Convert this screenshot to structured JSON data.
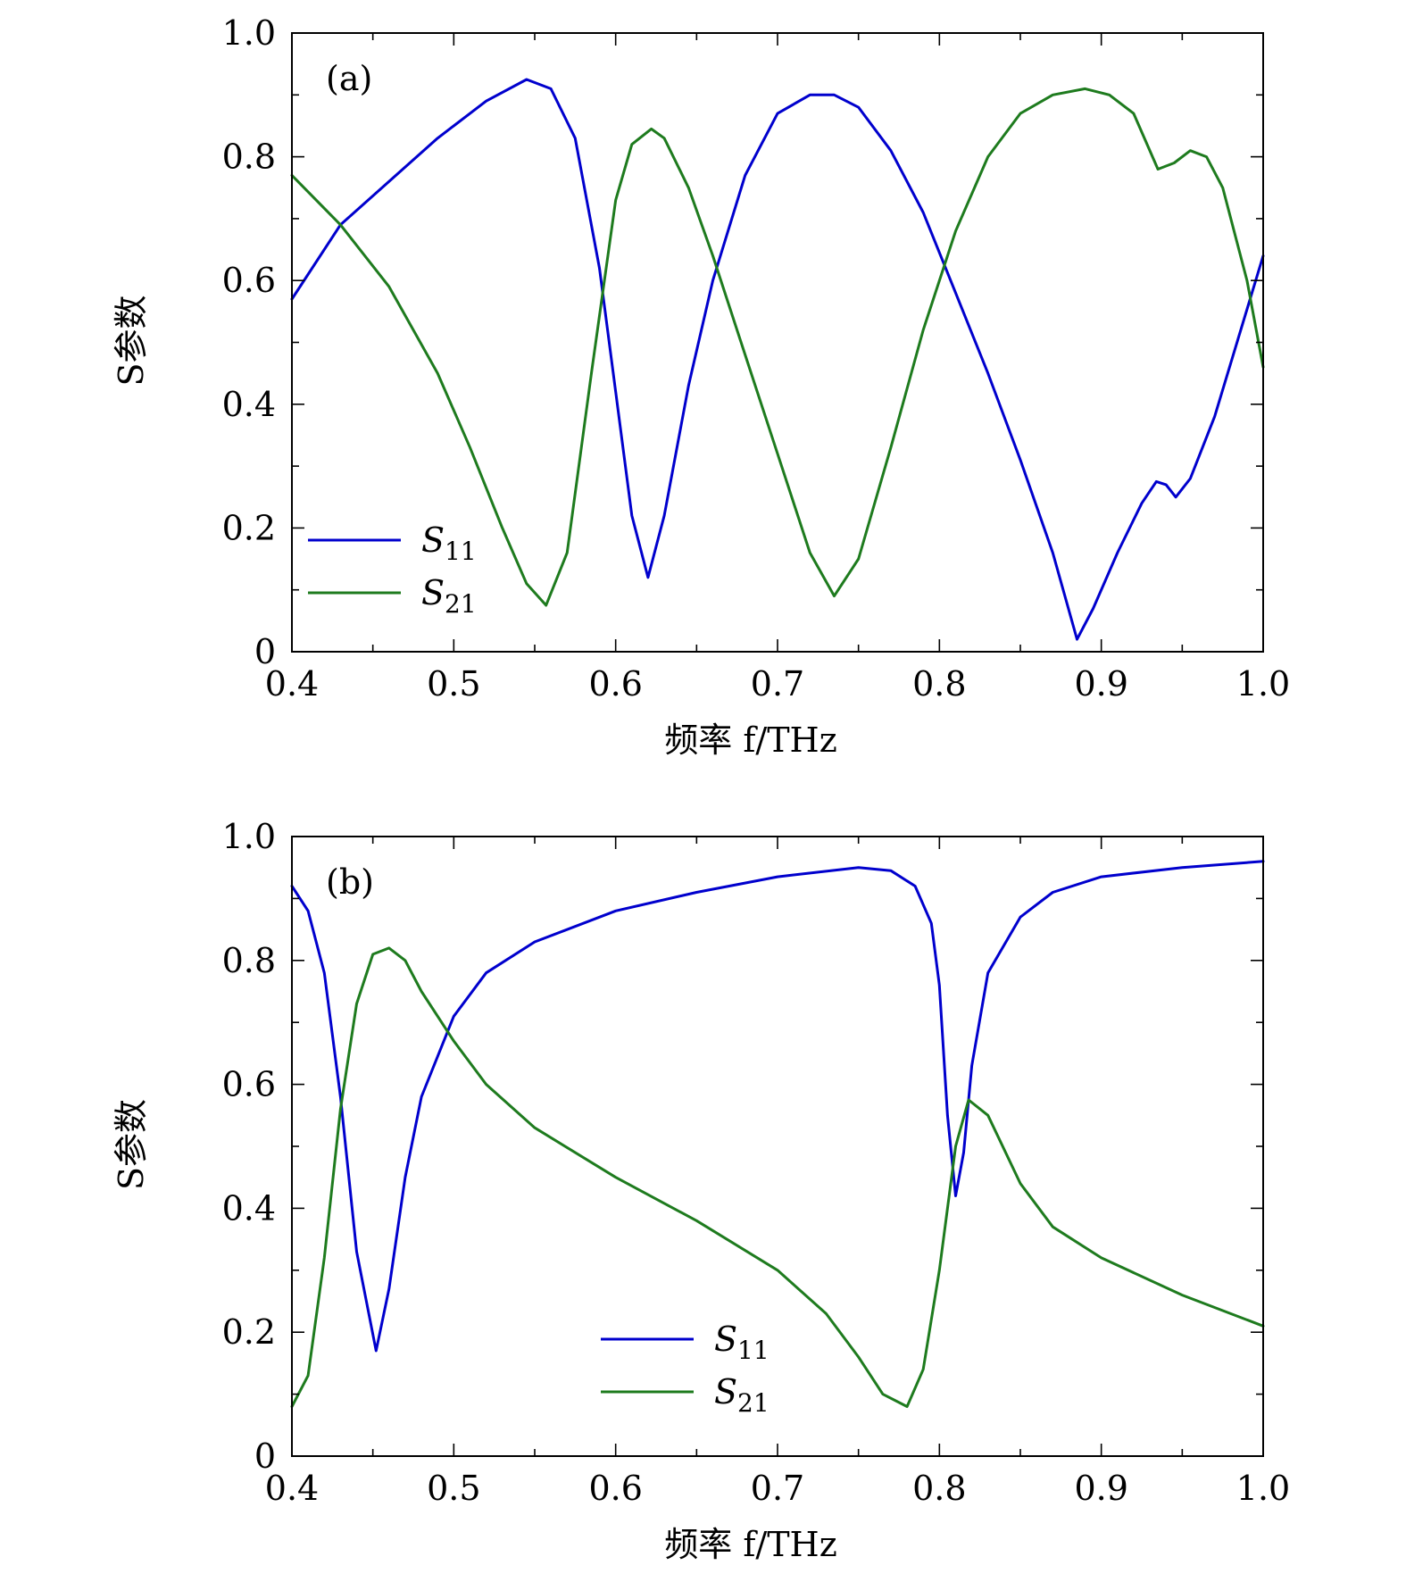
{
  "chart_data": [
    {
      "type": "line",
      "panel_label": "(a)",
      "xlabel": "频率 f/THz",
      "ylabel": "S参数",
      "xlim": [
        0.4,
        1.0
      ],
      "ylim": [
        0,
        1.0
      ],
      "xticks": [
        "0.4",
        "0.5",
        "0.6",
        "0.7",
        "0.8",
        "0.9",
        "1.0"
      ],
      "yticks": [
        "0",
        "0.2",
        "0.4",
        "0.6",
        "0.8",
        "1.0"
      ],
      "legend_placement": "bottom-left",
      "series": [
        {
          "name": "S11",
          "label_main": "S",
          "label_sub": "11",
          "color": "#0000cd",
          "x": [
            0.4,
            0.43,
            0.46,
            0.49,
            0.52,
            0.545,
            0.56,
            0.575,
            0.59,
            0.6,
            0.61,
            0.62,
            0.63,
            0.645,
            0.66,
            0.68,
            0.7,
            0.72,
            0.735,
            0.75,
            0.77,
            0.79,
            0.81,
            0.83,
            0.85,
            0.87,
            0.885,
            0.895,
            0.91,
            0.925,
            0.934,
            0.94,
            0.946,
            0.955,
            0.97,
            0.985,
            1.0
          ],
          "y": [
            0.57,
            0.69,
            0.76,
            0.83,
            0.89,
            0.925,
            0.91,
            0.83,
            0.62,
            0.42,
            0.22,
            0.12,
            0.22,
            0.43,
            0.6,
            0.77,
            0.87,
            0.9,
            0.9,
            0.88,
            0.81,
            0.71,
            0.58,
            0.45,
            0.31,
            0.16,
            0.02,
            0.07,
            0.16,
            0.24,
            0.275,
            0.27,
            0.25,
            0.28,
            0.38,
            0.51,
            0.64
          ]
        },
        {
          "name": "S21",
          "label_main": "S",
          "label_sub": "21",
          "color": "#1e7b1e",
          "x": [
            0.4,
            0.43,
            0.46,
            0.49,
            0.51,
            0.53,
            0.545,
            0.557,
            0.57,
            0.585,
            0.6,
            0.61,
            0.622,
            0.63,
            0.645,
            0.66,
            0.68,
            0.7,
            0.72,
            0.735,
            0.75,
            0.77,
            0.79,
            0.81,
            0.83,
            0.85,
            0.87,
            0.89,
            0.905,
            0.92,
            0.935,
            0.945,
            0.955,
            0.965,
            0.975,
            0.99,
            1.0
          ],
          "y": [
            0.77,
            0.69,
            0.59,
            0.45,
            0.33,
            0.2,
            0.11,
            0.075,
            0.16,
            0.45,
            0.73,
            0.82,
            0.845,
            0.83,
            0.75,
            0.64,
            0.48,
            0.32,
            0.16,
            0.09,
            0.15,
            0.33,
            0.52,
            0.68,
            0.8,
            0.87,
            0.9,
            0.91,
            0.9,
            0.87,
            0.78,
            0.79,
            0.81,
            0.8,
            0.75,
            0.6,
            0.46
          ]
        }
      ]
    },
    {
      "type": "line",
      "panel_label": "(b)",
      "xlabel": "频率 f/THz",
      "ylabel": "S参数",
      "xlim": [
        0.4,
        1.0
      ],
      "ylim": [
        0,
        1.0
      ],
      "xticks": [
        "0.4",
        "0.5",
        "0.6",
        "0.7",
        "0.8",
        "0.9",
        "1.0"
      ],
      "yticks": [
        "0",
        "0.2",
        "0.4",
        "0.6",
        "0.8",
        "1.0"
      ],
      "legend_placement": "bottom-center",
      "series": [
        {
          "name": "S11",
          "label_main": "S",
          "label_sub": "11",
          "color": "#0000cd",
          "x": [
            0.4,
            0.41,
            0.42,
            0.43,
            0.44,
            0.452,
            0.46,
            0.47,
            0.48,
            0.5,
            0.52,
            0.55,
            0.6,
            0.65,
            0.7,
            0.75,
            0.77,
            0.785,
            0.795,
            0.8,
            0.805,
            0.81,
            0.815,
            0.82,
            0.83,
            0.85,
            0.87,
            0.9,
            0.95,
            1.0
          ],
          "y": [
            0.92,
            0.88,
            0.78,
            0.58,
            0.33,
            0.17,
            0.27,
            0.45,
            0.58,
            0.71,
            0.78,
            0.83,
            0.88,
            0.91,
            0.935,
            0.95,
            0.945,
            0.92,
            0.86,
            0.76,
            0.55,
            0.42,
            0.49,
            0.63,
            0.78,
            0.87,
            0.91,
            0.935,
            0.95,
            0.96
          ]
        },
        {
          "name": "S21",
          "label_main": "S",
          "label_sub": "21",
          "color": "#1e7b1e",
          "x": [
            0.4,
            0.41,
            0.42,
            0.43,
            0.44,
            0.45,
            0.46,
            0.47,
            0.48,
            0.5,
            0.52,
            0.55,
            0.6,
            0.65,
            0.7,
            0.73,
            0.75,
            0.765,
            0.78,
            0.79,
            0.8,
            0.81,
            0.818,
            0.83,
            0.85,
            0.87,
            0.9,
            0.95,
            1.0
          ],
          "y": [
            0.08,
            0.13,
            0.32,
            0.56,
            0.73,
            0.81,
            0.82,
            0.8,
            0.75,
            0.67,
            0.6,
            0.53,
            0.45,
            0.38,
            0.3,
            0.23,
            0.16,
            0.1,
            0.08,
            0.14,
            0.3,
            0.5,
            0.575,
            0.55,
            0.44,
            0.37,
            0.32,
            0.26,
            0.21
          ]
        }
      ]
    }
  ]
}
